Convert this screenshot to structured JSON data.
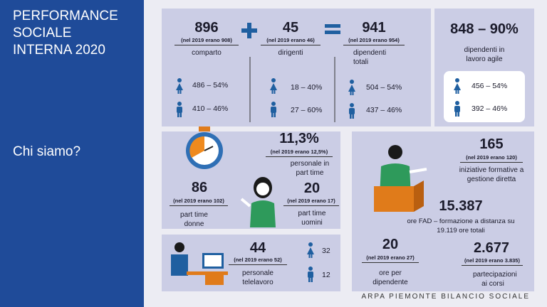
{
  "sidebar": {
    "title": "PERFORMANCE SOCIALE INTERNA 2020",
    "subtitle": "Chi siamo?"
  },
  "staff": {
    "groups": [
      {
        "number": "896",
        "note": "(nel 2019 erano 908)",
        "label": "comparto",
        "female": "486 – 54%",
        "male": "410 – 46%"
      },
      {
        "number": "45",
        "note": "(nel 2019 erano 46)",
        "label": "dirigenti",
        "female": "18 – 40%",
        "male": "27 – 60%"
      },
      {
        "number": "941",
        "note": "(nel 2019 erano 954)",
        "label": "dipendenti totali",
        "female": "504 – 54%",
        "male": "437 – 46%"
      }
    ]
  },
  "agile": {
    "number": "848 – 90%",
    "label": "dipendenti in lavoro agile",
    "female": "456 – 54%",
    "male": "392 – 46%"
  },
  "part_time": {
    "share": {
      "number": "11,3%",
      "note": "(nel 2019 erano 12,5%)",
      "label": "personale in part time"
    },
    "women": {
      "number": "86",
      "note": "(nel 2019 erano 102)",
      "label": "part time donne"
    },
    "men": {
      "number": "20",
      "note": "(nel 2019 erano 17)",
      "label": "part time uomini"
    }
  },
  "training": {
    "courses": {
      "number": "165",
      "note": "(nel 2019 erano 120)",
      "label": "iniziative formative a gestione diretta"
    },
    "fad": {
      "number": "15.387",
      "label": "ore FAD – formazione a distanza su 19.119 ore totali"
    },
    "per_employee": {
      "number": "20",
      "note": "(nel 2019 erano 27)",
      "label": "ore per dipendente"
    },
    "participations": {
      "number": "2.677",
      "note": "(nel 2019 erano 3.835)",
      "label": "partecipazioni ai corsi"
    }
  },
  "telework": {
    "number": "44",
    "note": "(nel 2019 erano 52)",
    "label": "personale telelavoro",
    "female": "32",
    "male": "12"
  },
  "footer": "ARPA PIEMONTE BILANCIO SOCIALE"
}
